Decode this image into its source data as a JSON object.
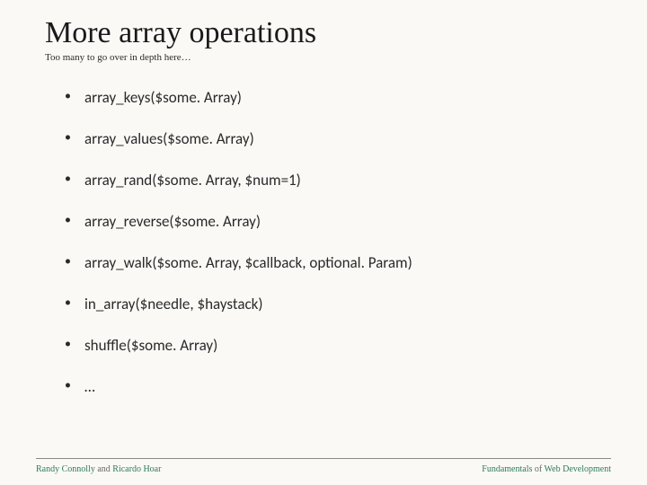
{
  "title": "More array operations",
  "subtitle": "Too many to go over in depth here…",
  "bullets": [
    "array_keys($some. Array)",
    "array_values($some. Array)",
    "array_rand($some. Array, $num=1)",
    "array_reverse($some. Array)",
    "array_walk($some. Array, $callback, optional. Param)",
    "in_array($needle, $haystack)",
    "shuffle($some. Array)",
    "…"
  ],
  "footer": {
    "left_name1": "Randy Connolly",
    "left_and": " and ",
    "left_name2": "Ricardo Hoar",
    "right_word1": "Fundamentals",
    "right_of": " of ",
    "right_word2": "Web Development"
  },
  "colors": {
    "background": "#faf9f6",
    "text": "#2a2a2a",
    "accent": "#2e7a5a",
    "rule": "#888"
  }
}
